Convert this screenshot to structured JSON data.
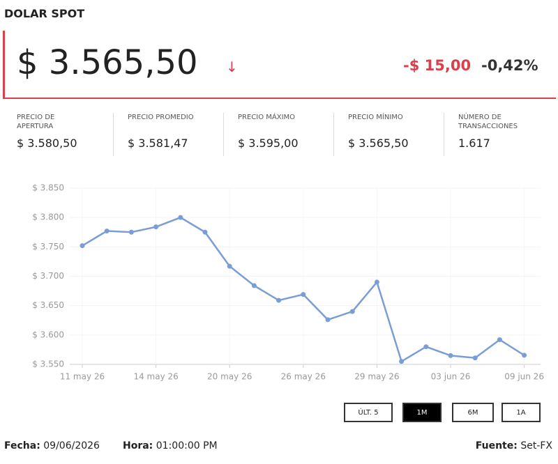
{
  "header": {
    "title": "DOLAR SPOT",
    "price": "$ 3.565,50",
    "change": "-$ 15,00",
    "change_pct": "-0,42%"
  },
  "stats": [
    {
      "label": "PRECIO DE APERTURA",
      "value": "$ 3.580,50"
    },
    {
      "label": "PRECIO PROMEDIO",
      "value": "$ 3.581,47"
    },
    {
      "label": "PRECIO MÁXIMO",
      "value": "$ 3.595,00"
    },
    {
      "label": "PRECIO MÍNIMO",
      "value": "$ 3.565,50"
    },
    {
      "label": "NÚMERO DE TRANSACCIONES",
      "value": "1.617"
    }
  ],
  "chart_data": {
    "type": "line",
    "categories": [
      "11 may 26",
      null,
      null,
      "14 may 26",
      null,
      null,
      "20 may 26",
      null,
      null,
      "26 may 26",
      null,
      null,
      "29 may 26",
      null,
      null,
      "03 jun 26",
      null,
      null,
      "09 jun 26"
    ],
    "series": [
      {
        "name": "Dolar",
        "color": "#7a9dd6",
        "values": [
          3752,
          3777,
          3775,
          3784,
          3800,
          3775,
          3717,
          3684,
          3659,
          3669,
          3626,
          3640,
          3690,
          3555,
          3580,
          3565,
          3561,
          3592,
          3565.5
        ]
      }
    ],
    "ylim": [
      3550,
      3850
    ],
    "yticks": [
      {
        "value": 3550,
        "label": "$ 3.550"
      },
      {
        "value": 3600,
        "label": "$ 3.600"
      },
      {
        "value": 3650,
        "label": "$ 3.650"
      },
      {
        "value": 3700,
        "label": "$ 3.700"
      },
      {
        "value": 3750,
        "label": "$ 3.750"
      },
      {
        "value": 3800,
        "label": "$ 3.800"
      },
      {
        "value": 3850,
        "label": "$ 3.850"
      }
    ],
    "grid": true
  },
  "buttons": [
    "ÚLT. 5",
    "1M",
    "6M",
    "1A"
  ],
  "footer": {
    "fecha_label": "Fecha:",
    "fecha": "09/06/2026",
    "hora_label": "Hora:",
    "hora": "01:00:00 PM",
    "fuente_label": "Fuente:",
    "fuente": "Set-FX"
  }
}
